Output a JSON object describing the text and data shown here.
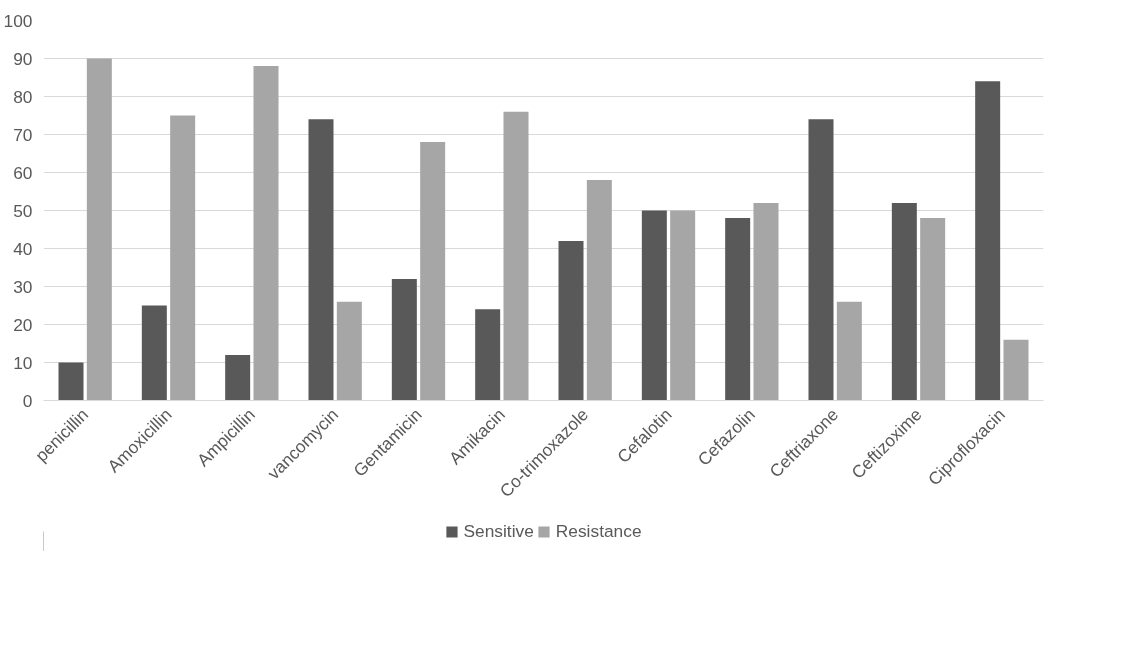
{
  "chart_data": {
    "type": "bar",
    "categories": [
      "penicillin",
      "Amoxicillin",
      "Ampicillin",
      "vancomycin",
      "Gentamicin",
      "Amikacin",
      "Co-trimoxazole",
      "Cefalotin",
      "Cefazolin",
      "Ceftriaxone",
      "Ceftizoxime",
      "Ciprofloxacin"
    ],
    "series": [
      {
        "name": "Sensitive",
        "color": "#595959",
        "values": [
          10,
          25,
          12,
          74,
          32,
          24,
          42,
          50,
          48,
          74,
          52,
          84
        ]
      },
      {
        "name": "Resistance",
        "color": "#a6a6a6",
        "values": [
          90,
          75,
          88,
          26,
          68,
          76,
          58,
          50,
          52,
          26,
          48,
          16
        ]
      }
    ],
    "ylim": [
      0,
      100
    ],
    "yticks": [
      0,
      10,
      20,
      30,
      40,
      50,
      60,
      70,
      80,
      90,
      100
    ],
    "grid": "y",
    "legend": "bottom"
  }
}
